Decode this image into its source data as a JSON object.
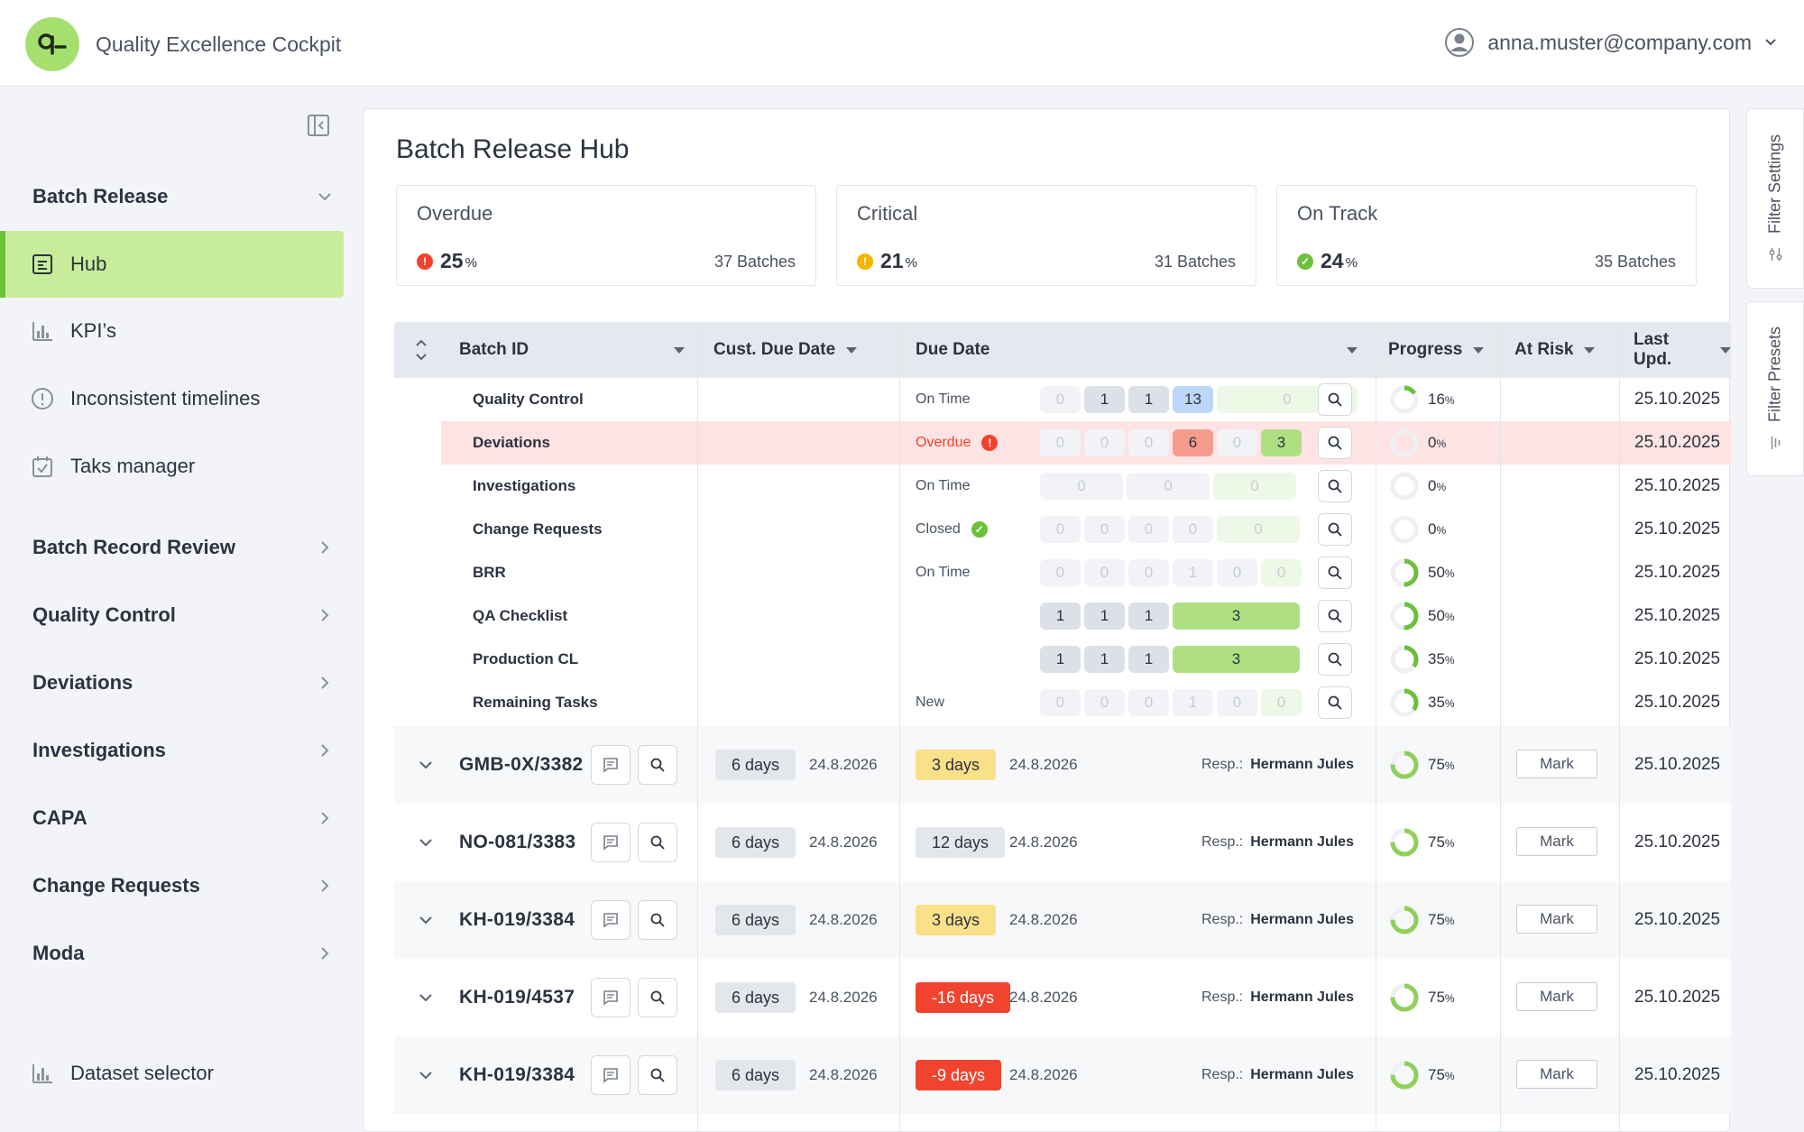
{
  "app": {
    "title": "Quality Excellence Cockpit",
    "user_email": "anna.muster@company.com",
    "brand_color": "#a5e06f"
  },
  "sidebar": {
    "groups": [
      {
        "label": "Batch Release",
        "expanded": true
      },
      {
        "label": "Batch Record Review"
      },
      {
        "label": "Quality Control"
      },
      {
        "label": "Deviations"
      },
      {
        "label": "Investigations"
      },
      {
        "label": "CAPA"
      },
      {
        "label": "Change Requests"
      },
      {
        "label": "Moda"
      }
    ],
    "items": [
      {
        "label": "Hub",
        "icon": "document-icon",
        "active": true
      },
      {
        "label": "KPI’s",
        "icon": "bar-chart-icon"
      },
      {
        "label": "Inconsistent timelines",
        "icon": "alert-circle-icon"
      },
      {
        "label": "Taks manager",
        "icon": "clipboard-check-icon"
      }
    ],
    "footer_item": {
      "label": "Dataset selector",
      "icon": "bar-chart-icon"
    }
  },
  "page": {
    "title": "Batch Release Hub"
  },
  "cards": [
    {
      "title": "Overdue",
      "percent": "25",
      "unit": "%",
      "count": "37 Batches",
      "color": "#f2432f"
    },
    {
      "title": "Critical",
      "percent": "21",
      "unit": "%",
      "count": "31 Batches",
      "color": "#f5b400"
    },
    {
      "title": "On Track",
      "percent": "24",
      "unit": "%",
      "count": "35 Batches",
      "color": "#6cc03c"
    }
  ],
  "table": {
    "columns": [
      "Batch ID",
      "Cust. Due Date",
      "Due Date",
      "Progress",
      "At Risk",
      "Last Upd."
    ],
    "sub_rows": [
      {
        "label": "Quality Control",
        "status": "On Time",
        "chips": [
          {
            "v": "0",
            "c": ""
          },
          {
            "v": "1",
            "c": "gray"
          },
          {
            "v": "1",
            "c": "gray"
          },
          {
            "v": "13",
            "c": "blue"
          },
          {
            "v": "0",
            "c": "pale",
            "w": 156
          }
        ],
        "progress": 0.16,
        "progress_label": "16",
        "updated": "25.10.2025"
      },
      {
        "label": "Deviations",
        "status": "Overdue",
        "status_icon": "error",
        "highlight": true,
        "chips": [
          {
            "v": "0",
            "c": ""
          },
          {
            "v": "0",
            "c": ""
          },
          {
            "v": "0",
            "c": ""
          },
          {
            "v": "6",
            "c": "red"
          },
          {
            "v": "0",
            "c": ""
          },
          {
            "v": "3",
            "c": "green"
          }
        ],
        "progress": 0,
        "progress_label": "0",
        "updated": "25.10.2025"
      },
      {
        "label": "Investigations",
        "status": "On Time",
        "chips": [
          {
            "v": "0",
            "c": "",
            "w": 92
          },
          {
            "v": "0",
            "c": "",
            "w": 92
          },
          {
            "v": "0",
            "c": "pale",
            "w": 92
          }
        ],
        "progress": 0,
        "progress_label": "0",
        "updated": "25.10.2025"
      },
      {
        "label": "Change Requests",
        "status": "Closed",
        "status_icon": "check",
        "chips": [
          {
            "v": "0",
            "c": ""
          },
          {
            "v": "0",
            "c": ""
          },
          {
            "v": "0",
            "c": ""
          },
          {
            "v": "0",
            "c": ""
          },
          {
            "v": "0",
            "c": "pale",
            "w": 92
          }
        ],
        "progress": 0,
        "progress_label": "0",
        "updated": "25.10.2025"
      },
      {
        "label": "BRR",
        "status": "On Time",
        "chips": [
          {
            "v": "0",
            "c": ""
          },
          {
            "v": "0",
            "c": ""
          },
          {
            "v": "0",
            "c": ""
          },
          {
            "v": "1",
            "c": ""
          },
          {
            "v": "0",
            "c": ""
          },
          {
            "v": "0",
            "c": "pale"
          }
        ],
        "progress": 0.5,
        "progress_label": "50",
        "updated": "25.10.2025"
      },
      {
        "label": "QA Checklist",
        "status": "",
        "chips": [
          {
            "v": "1",
            "c": "gray"
          },
          {
            "v": "1",
            "c": "gray"
          },
          {
            "v": "1",
            "c": "gray"
          },
          {
            "v": "3",
            "c": "green",
            "w": 141
          }
        ],
        "progress": 0.5,
        "progress_label": "50",
        "updated": "25.10.2025"
      },
      {
        "label": "Production CL",
        "status": "",
        "chips": [
          {
            "v": "1",
            "c": "gray"
          },
          {
            "v": "1",
            "c": "gray"
          },
          {
            "v": "1",
            "c": "gray"
          },
          {
            "v": "3",
            "c": "green",
            "w": 141
          }
        ],
        "progress": 0.35,
        "progress_label": "35",
        "updated": "25.10.2025"
      },
      {
        "label": "Remaining Tasks",
        "status": "New",
        "chips": [
          {
            "v": "0",
            "c": ""
          },
          {
            "v": "0",
            "c": ""
          },
          {
            "v": "0",
            "c": ""
          },
          {
            "v": "1",
            "c": ""
          },
          {
            "v": "0",
            "c": ""
          },
          {
            "v": "0",
            "c": "pale"
          }
        ],
        "progress": 0.35,
        "progress_label": "35",
        "updated": "25.10.2025"
      }
    ],
    "batches": [
      {
        "id": "GMB-0X/3382",
        "cust_days": "6 days",
        "cust_date": "24.8.2026",
        "due_days": "3 days",
        "due_style": "yellow",
        "due_date": "24.8.2026",
        "resp_label": "Resp.:",
        "resp": "Hermann Jules",
        "progress": 0.75,
        "progress_label": "75",
        "mark": "Mark",
        "updated": "25.10.2025"
      },
      {
        "id": "NO-081/3383",
        "cust_days": "6 days",
        "cust_date": "24.8.2026",
        "due_days": "12 days",
        "due_style": "gray",
        "due_date": "24.8.2026",
        "resp_label": "Resp.:",
        "resp": "Hermann Jules",
        "progress": 0.75,
        "progress_label": "75",
        "mark": "Mark",
        "updated": "25.10.2025"
      },
      {
        "id": "KH-019/3384",
        "cust_days": "6 days",
        "cust_date": "24.8.2026",
        "due_days": "3 days",
        "due_style": "yellow",
        "due_date": "24.8.2026",
        "resp_label": "Resp.:",
        "resp": "Hermann Jules",
        "progress": 0.75,
        "progress_label": "75",
        "mark": "Mark",
        "updated": "25.10.2025"
      },
      {
        "id": "KH-019/4537",
        "cust_days": "6 days",
        "cust_date": "24.8.2026",
        "due_days": "-16 days",
        "due_style": "red",
        "due_date": "24.8.2026",
        "resp_label": "Resp.:",
        "resp": "Hermann Jules",
        "progress": 0.75,
        "progress_label": "75",
        "mark": "Mark",
        "updated": "25.10.2025"
      },
      {
        "id": "KH-019/3384",
        "cust_days": "6 days",
        "cust_date": "24.8.2026",
        "due_days": "-9 days",
        "due_style": "red",
        "due_date": "24.8.2026",
        "resp_label": "Resp.:",
        "resp": "Hermann Jules",
        "progress": 0.75,
        "progress_label": "75",
        "mark": "Mark",
        "updated": "25.10.2025"
      }
    ]
  },
  "right_tabs": [
    {
      "label": "Filter Settings"
    },
    {
      "label": "Filter Presets"
    }
  ]
}
